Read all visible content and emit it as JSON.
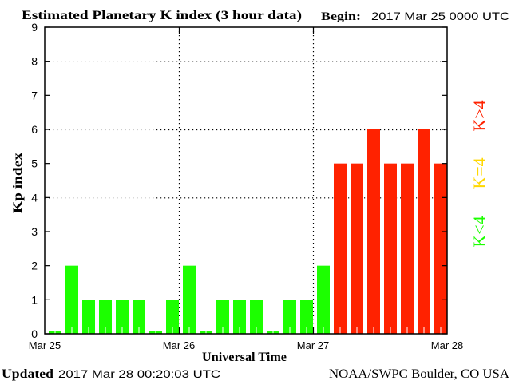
{
  "header": {
    "title": "Estimated Planetary K index (3 hour data)",
    "begin_label": "Begin:",
    "begin_value": "2017 Mar 25 0000 UTC"
  },
  "footer": {
    "updated_label": "Updated",
    "updated_value": "2017 Mar 28 00:20:03 UTC",
    "credit": "NOAA/SWPC Boulder, CO USA"
  },
  "legend": [
    {
      "label": "K>4",
      "color": "#ff2200"
    },
    {
      "label": "K=4",
      "color": "#ffd800"
    },
    {
      "label": "K<4",
      "color": "#1cff00"
    }
  ],
  "colors": {
    "below_4": "#1cff00",
    "equal_4": "#ffd800",
    "above_4": "#ff2200",
    "axis": "#000000",
    "background": "#ffffff"
  },
  "chart_data": {
    "type": "bar",
    "title": "Estimated Planetary K index (3 hour data)",
    "xlabel": "Universal Time",
    "ylabel": "Kp index",
    "ylim": [
      0,
      9
    ],
    "yticks": [
      "0",
      "1",
      "2",
      "3",
      "4",
      "5",
      "6",
      "7",
      "8",
      "9"
    ],
    "y_gridlines": [
      4,
      6,
      8
    ],
    "xticks": [
      "Mar 25",
      "Mar 26",
      "Mar 27",
      "Mar 28"
    ],
    "x_gridlines": [
      "Mar 26",
      "Mar 27"
    ],
    "interval_hours": 3,
    "categories": [
      "Mar 25 00",
      "Mar 25 03",
      "Mar 25 06",
      "Mar 25 09",
      "Mar 25 12",
      "Mar 25 15",
      "Mar 25 18",
      "Mar 25 21",
      "Mar 26 00",
      "Mar 26 03",
      "Mar 26 06",
      "Mar 26 09",
      "Mar 26 12",
      "Mar 26 15",
      "Mar 26 18",
      "Mar 26 21",
      "Mar 27 00",
      "Mar 27 03",
      "Mar 27 06",
      "Mar 27 09",
      "Mar 27 12",
      "Mar 27 15",
      "Mar 27 18",
      "Mar 27 21"
    ],
    "values": [
      0,
      2,
      1,
      1,
      1,
      1,
      0,
      1,
      2,
      0,
      1,
      1,
      1,
      0,
      1,
      1,
      2,
      5,
      5,
      6,
      5,
      5,
      6,
      5
    ],
    "legend": [
      "K>4",
      "K=4",
      "K<4"
    ],
    "legend_position": "right"
  }
}
